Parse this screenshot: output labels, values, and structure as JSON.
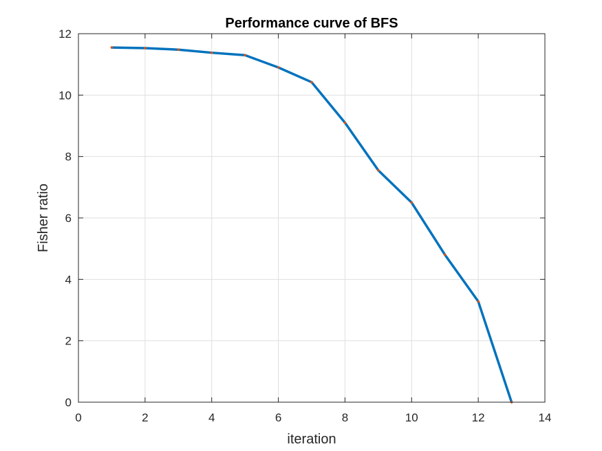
{
  "chart_data": {
    "type": "line",
    "title": "Performance curve of BFS",
    "xlabel": "iteration",
    "ylabel": "Fisher ratio",
    "xlim": [
      0,
      14
    ],
    "ylim": [
      0,
      12
    ],
    "xticks": [
      0,
      2,
      4,
      6,
      8,
      10,
      12,
      14
    ],
    "yticks": [
      0,
      2,
      4,
      6,
      8,
      10,
      12
    ],
    "grid": true,
    "line_color": "#0072BD",
    "marker_color": "#D95319",
    "series": [
      {
        "x": [
          1,
          2,
          3,
          4,
          5,
          6,
          7,
          8,
          9,
          10,
          11,
          12,
          13
        ],
        "values": [
          11.55,
          11.53,
          11.48,
          11.38,
          11.3,
          10.9,
          10.42,
          9.1,
          7.55,
          6.5,
          4.8,
          3.28,
          0.0
        ]
      }
    ]
  }
}
